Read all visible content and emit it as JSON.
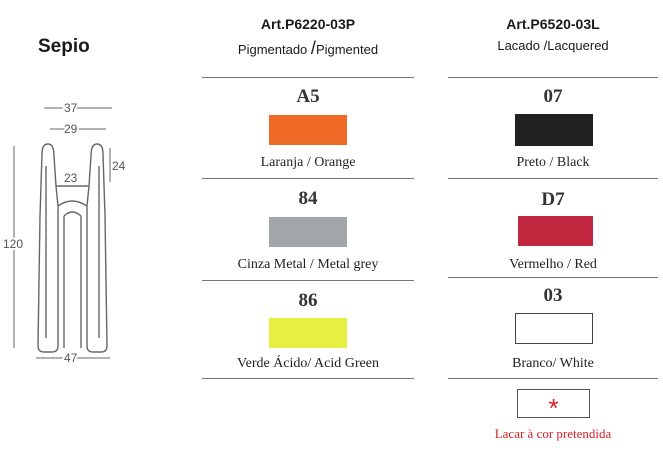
{
  "product": {
    "name": "Sepio"
  },
  "dimensions": {
    "top_width": "37",
    "inner_width": "29",
    "slot_width": "23",
    "slot_height": "24",
    "height": "120",
    "base_width": "47"
  },
  "columns": [
    {
      "article": "Art.P6220-03P",
      "finish_pt": "Pigmentado",
      "separator": "/",
      "finish_en": "Pigmented",
      "colors": [
        {
          "code": "A5",
          "name": "Laranja / Orange",
          "hex": "#ef6a25"
        },
        {
          "code": "84",
          "name": "Cinza Metal / Metal grey",
          "hex": "#a3a6a9"
        },
        {
          "code": "86",
          "name": "Verde Ácido/ Acid Green",
          "hex": "#e8ef43"
        }
      ]
    },
    {
      "article": "Art.P6520-03L",
      "finish": "Lacado /Lacquered",
      "colors": [
        {
          "code": "07",
          "name": "Preto / Black",
          "hex": "#222222"
        },
        {
          "code": "D7",
          "name": "Vermelho / Red",
          "hex": "#c1273e"
        },
        {
          "code": "03",
          "name": "Branco/ White",
          "hex": "#ffffff"
        }
      ],
      "custom": {
        "symbol": "*",
        "label": "Lacar à cor pretendida"
      }
    }
  ]
}
